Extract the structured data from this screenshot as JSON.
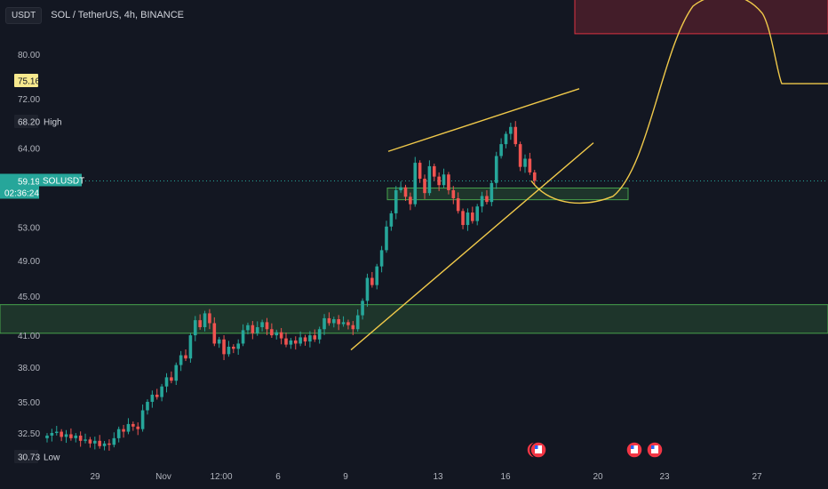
{
  "header": {
    "currency_button": "USDT",
    "title": "SOL / TetherUS, 4h, BINANCE"
  },
  "colors": {
    "background": "#131722",
    "up": "#26a69a",
    "down": "#ef5350",
    "zone_green": "#4caf50",
    "zone_red": "#f23645",
    "trendline": "#f0c94a",
    "price_line": "#26a69a"
  },
  "labels": {
    "target": "75.16",
    "high_value": "68.20",
    "high_text": "High",
    "last_value": "59.19",
    "symbol": "SOLUSDT",
    "countdown": "02:36:24",
    "low_value": "30.73",
    "low_text": "Low"
  },
  "chart_data": {
    "type": "candlestick",
    "symbol": "SOLUSDT",
    "interval": "4h",
    "exchange": "BINANCE",
    "y_ticks": [
      "80.00",
      "72.00",
      "64.00",
      "53.00",
      "49.00",
      "45.00",
      "41.00",
      "38.00",
      "35.00",
      "32.50"
    ],
    "x_ticks": [
      "29",
      "Nov",
      "12:00",
      "6",
      "9",
      "13",
      "16",
      "20",
      "23",
      "27"
    ],
    "ylim": [
      29.5,
      98
    ],
    "scale": "log",
    "last_price": 59.19,
    "high": 68.2,
    "low": 30.73,
    "target": 75.16,
    "zones": [
      {
        "kind": "support",
        "from": 41.2,
        "to": 44.1
      },
      {
        "kind": "support",
        "from": 56.6,
        "to": 58.2
      },
      {
        "kind": "resistance",
        "from": 84.0,
        "to": 96.0
      }
    ],
    "candles_close": [
      32.3,
      32.5,
      32.6,
      32.2,
      32.4,
      32.1,
      32.3,
      31.9,
      32.0,
      31.7,
      31.9,
      31.5,
      31.7,
      31.6,
      32.1,
      32.8,
      32.6,
      33.2,
      33.0,
      32.8,
      34.3,
      35.0,
      35.6,
      35.4,
      36.3,
      37.1,
      36.8,
      38.2,
      39.1,
      38.8,
      41.0,
      42.5,
      41.8,
      43.2,
      42.2,
      40.2,
      40.6,
      39.2,
      39.9,
      39.7,
      40.2,
      41.5,
      42.0,
      41.2,
      41.8,
      42.3,
      41.6,
      41.0,
      41.3,
      40.7,
      40.1,
      40.5,
      40.2,
      40.8,
      40.4,
      41.0,
      40.6,
      41.6,
      42.7,
      42.2,
      42.6,
      42.1,
      42.3,
      42.0,
      41.6,
      43.0,
      44.5,
      47.0,
      46.2,
      48.3,
      50.2,
      53.1,
      54.8,
      57.9,
      58.3,
      57.0,
      56.0,
      61.8,
      59.5,
      57.5,
      61.3,
      59.8,
      58.6,
      60.1,
      57.9,
      56.8,
      55.1,
      53.3,
      54.9,
      53.8,
      55.7,
      57.1,
      56.3,
      58.9,
      62.8,
      64.6,
      66.2,
      67.3,
      64.6,
      61.2,
      62.4,
      60.4,
      59.2
    ],
    "projection_levels": [
      56.1,
      92.0,
      74.6
    ],
    "trendlines": [
      {
        "name": "upper-wedge",
        "from": 63.5,
        "to": 73.7
      },
      {
        "name": "lower-wedge",
        "from": 39.6,
        "to": 64.8
      }
    ]
  }
}
